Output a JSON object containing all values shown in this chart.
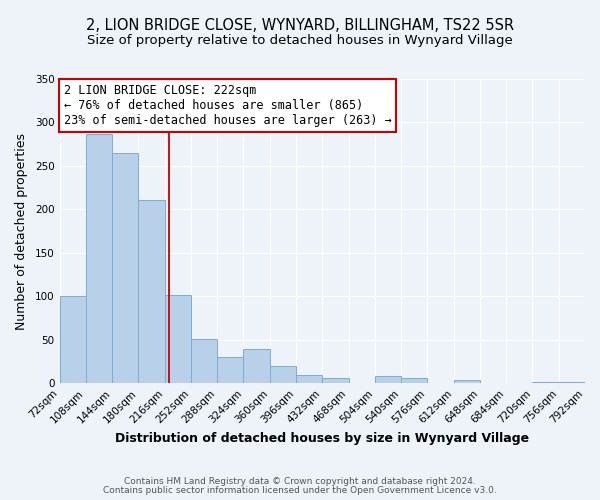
{
  "title": "2, LION BRIDGE CLOSE, WYNYARD, BILLINGHAM, TS22 5SR",
  "subtitle": "Size of property relative to detached houses in Wynyard Village",
  "xlabel": "Distribution of detached houses by size in Wynyard Village",
  "ylabel": "Number of detached properties",
  "bin_edges": [
    72,
    108,
    144,
    180,
    216,
    252,
    288,
    324,
    360,
    396,
    432,
    468,
    504,
    540,
    576,
    612,
    648,
    684,
    720,
    756,
    792
  ],
  "bar_heights": [
    100,
    287,
    265,
    211,
    102,
    51,
    30,
    40,
    20,
    10,
    6,
    0,
    8,
    6,
    0,
    4,
    0,
    0,
    2,
    2
  ],
  "bar_color": "#b8d0e8",
  "bar_edge_color": "#7aadd4",
  "ref_line_x": 222,
  "annotation_line1": "2 LION BRIDGE CLOSE: 222sqm",
  "annotation_line2": "← 76% of detached houses are smaller (865)",
  "annotation_line3": "23% of semi-detached houses are larger (263) →",
  "annotation_box_color": "#ffffff",
  "annotation_box_edge_color": "#cc0000",
  "ref_line_color": "#cc0000",
  "ylim": [
    0,
    350
  ],
  "yticks": [
    0,
    50,
    100,
    150,
    200,
    250,
    300,
    350
  ],
  "footer_line1": "Contains HM Land Registry data © Crown copyright and database right 2024.",
  "footer_line2": "Contains public sector information licensed under the Open Government Licence v3.0.",
  "background_color": "#eef2f9",
  "grid_color": "#ffffff",
  "title_fontsize": 10.5,
  "subtitle_fontsize": 9.5,
  "axis_label_fontsize": 9,
  "tick_fontsize": 7.5,
  "annotation_fontsize": 8.5,
  "footer_fontsize": 6.5
}
